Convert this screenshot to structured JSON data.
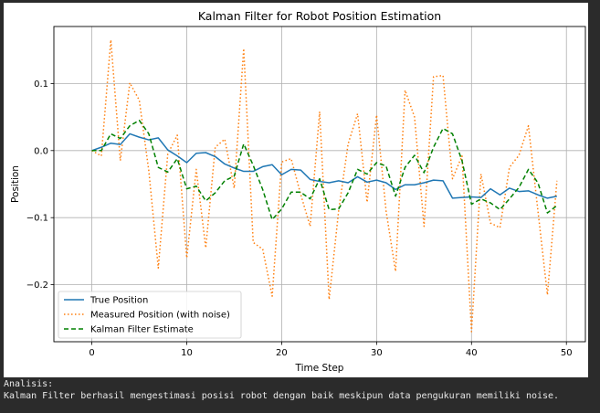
{
  "chart_data": {
    "type": "line",
    "title": "Kalman Filter for Robot Position Estimation",
    "xlabel": "Time Step",
    "ylabel": "Position",
    "xlim": [
      -4,
      52
    ],
    "ylim": [
      -0.285,
      0.185
    ],
    "xticks": [
      0,
      10,
      20,
      30,
      40,
      50
    ],
    "yticks": [
      -0.2,
      -0.1,
      0.0,
      0.1
    ],
    "ytick_labels": [
      "−0.2",
      "−0.1",
      "0.0",
      "0.1"
    ],
    "grid": true,
    "legend_position": "lower-left",
    "x": [
      0,
      1,
      2,
      3,
      4,
      5,
      6,
      7,
      8,
      9,
      10,
      11,
      12,
      13,
      14,
      15,
      16,
      17,
      18,
      19,
      20,
      21,
      22,
      23,
      24,
      25,
      26,
      27,
      28,
      29,
      30,
      31,
      32,
      33,
      34,
      35,
      36,
      37,
      38,
      39,
      40,
      41,
      42,
      43,
      44,
      45,
      46,
      47,
      48,
      49
    ],
    "series": [
      {
        "name": "True Position",
        "color": "#1f77b4",
        "style": "solid",
        "values": [
          0.0,
          0.005,
          0.011,
          0.009,
          0.025,
          0.02,
          0.016,
          0.019,
          0.001,
          -0.008,
          -0.018,
          -0.004,
          -0.003,
          -0.009,
          -0.02,
          -0.026,
          -0.031,
          -0.031,
          -0.024,
          -0.021,
          -0.036,
          -0.028,
          -0.029,
          -0.043,
          -0.046,
          -0.048,
          -0.045,
          -0.048,
          -0.039,
          -0.047,
          -0.044,
          -0.048,
          -0.058,
          -0.051,
          -0.051,
          -0.048,
          -0.044,
          -0.045,
          -0.071,
          -0.07,
          -0.069,
          -0.07,
          -0.057,
          -0.066,
          -0.056,
          -0.061,
          -0.06,
          -0.066,
          -0.071,
          -0.068
        ]
      },
      {
        "name": "Measured Position (with noise)",
        "color": "#ff7f0e",
        "style": "dotted",
        "values": [
          0.0,
          -0.008,
          0.165,
          -0.015,
          0.101,
          0.075,
          -0.03,
          -0.175,
          -0.005,
          0.023,
          -0.16,
          -0.028,
          -0.145,
          0.005,
          0.017,
          -0.056,
          0.152,
          -0.137,
          -0.147,
          -0.217,
          -0.017,
          -0.012,
          -0.065,
          -0.113,
          0.058,
          -0.222,
          -0.09,
          0.01,
          0.055,
          -0.077,
          0.053,
          -0.09,
          -0.18,
          0.09,
          0.05,
          -0.113,
          0.11,
          0.112,
          -0.042,
          -0.008,
          -0.27,
          -0.035,
          -0.108,
          -0.115,
          -0.025,
          -0.007,
          0.037,
          -0.09,
          -0.215,
          -0.045
        ]
      },
      {
        "name": "Kalman Filter Estimate",
        "color": "#008000",
        "style": "dashed",
        "values": [
          0.0,
          0.0,
          0.025,
          0.018,
          0.037,
          0.045,
          0.025,
          -0.025,
          -0.032,
          -0.012,
          -0.057,
          -0.053,
          -0.075,
          -0.063,
          -0.045,
          -0.038,
          0.01,
          -0.022,
          -0.058,
          -0.103,
          -0.087,
          -0.062,
          -0.062,
          -0.072,
          -0.042,
          -0.088,
          -0.087,
          -0.063,
          -0.028,
          -0.035,
          -0.018,
          -0.023,
          -0.068,
          -0.025,
          -0.007,
          -0.033,
          0.005,
          0.033,
          0.025,
          -0.015,
          -0.08,
          -0.072,
          -0.078,
          -0.088,
          -0.072,
          -0.055,
          -0.028,
          -0.048,
          -0.093,
          -0.082
        ]
      }
    ]
  },
  "output": {
    "line1": "Analisis:",
    "line2": "Kalman Filter berhasil mengestimasi posisi robot dengan baik meskipun data pengukuran memiliki noise."
  }
}
